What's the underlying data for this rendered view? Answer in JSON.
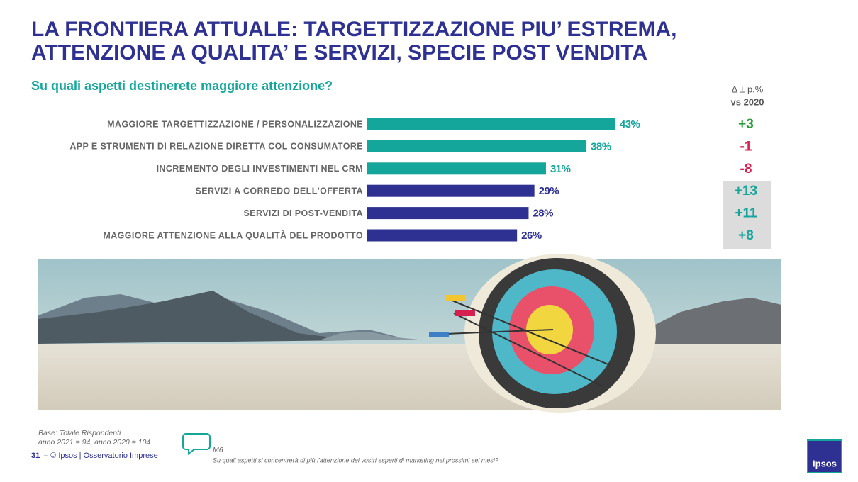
{
  "header": {
    "title_lines": [
      "LA FRONTIERA ATTUALE: TARGETTIZZAZIONE PIU’ ESTREMA,",
      "ATTENZIONE A QUALITA’ E SERVIZI, SPECIE POST VENDITA"
    ]
  },
  "chart_data": {
    "type": "bar",
    "orientation": "horizontal",
    "subtitle": "Su quali aspetti destinerete maggiore attenzione?",
    "categories": [
      "MAGGIORE TARGETTIZZAZIONE / PERSONALIZZAZIONE",
      "APP E STRUMENTI DI RELAZIONE DIRETTA COL CONSUMATORE",
      "INCREMENTO DEGLI INVESTIMENTI NEL CRM",
      "SERVIZI A CORREDO DELL'OFFERTA",
      "SERVIZI DI POST-VENDITA",
      "MAGGIORE ATTENZIONE ALLA QUALITÀ DEL PRODOTTO"
    ],
    "values": [
      43,
      38,
      31,
      29,
      28,
      26
    ],
    "value_labels": [
      "43%",
      "38%",
      "31%",
      "29%",
      "28%",
      "26%"
    ],
    "colors": [
      "#14a59b",
      "#14a59b",
      "#14a59b",
      "#2e3192",
      "#2e3192",
      "#2e3192"
    ]
  },
  "delta_column": {
    "header": [
      "Δ ± p.%",
      "vs 2020"
    ],
    "cells": [
      "+3",
      "-1",
      "-8",
      "+13",
      "+11",
      "+8"
    ],
    "colors": [
      "#2e9e3a",
      "#d6204f",
      "#d6204f",
      "#14a59b",
      "#14a59b",
      "#14a59b"
    ]
  },
  "footer": {
    "base": [
      "Base: Totale Rispondenti",
      "anno 2021 = 94, anno 2020 = 104"
    ],
    "page": "31",
    "credit": "– © Ipsos | Osservatorio Imprese",
    "question_code": "M6",
    "question": "Su quali aspetti si concentrerà di più l'attenzione dei vostri esperti di marketing nei prossimi sei mesi?",
    "logo": "Ipsos"
  }
}
